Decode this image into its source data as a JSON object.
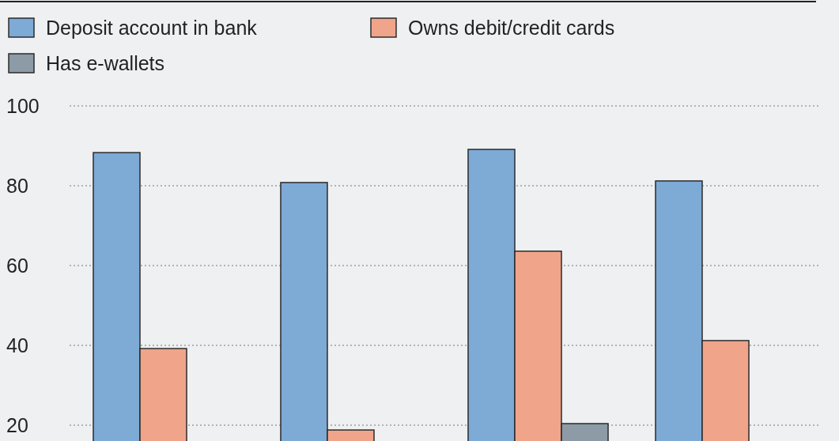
{
  "chart_data": {
    "type": "bar",
    "categories": [
      null,
      null,
      null,
      null
    ],
    "series": [
      {
        "name": "Deposit account in bank",
        "color": "#7eaad6",
        "values": [
          88.3,
          80.8,
          89.1,
          81.2
        ]
      },
      {
        "name": "Owns debit/credit cards",
        "color": "#f0a58a",
        "values": [
          39.2,
          18.8,
          63.6,
          41.2
        ]
      },
      {
        "name": "Has e-wallets",
        "color": "#8c9ba5",
        "values": [
          null,
          null,
          20.4,
          null
        ]
      }
    ],
    "ylim": [
      16,
      100
    ],
    "yticks": [
      20,
      40,
      60,
      80,
      100
    ],
    "grid": "y",
    "legend": "top left",
    "tick_labels": "y"
  }
}
